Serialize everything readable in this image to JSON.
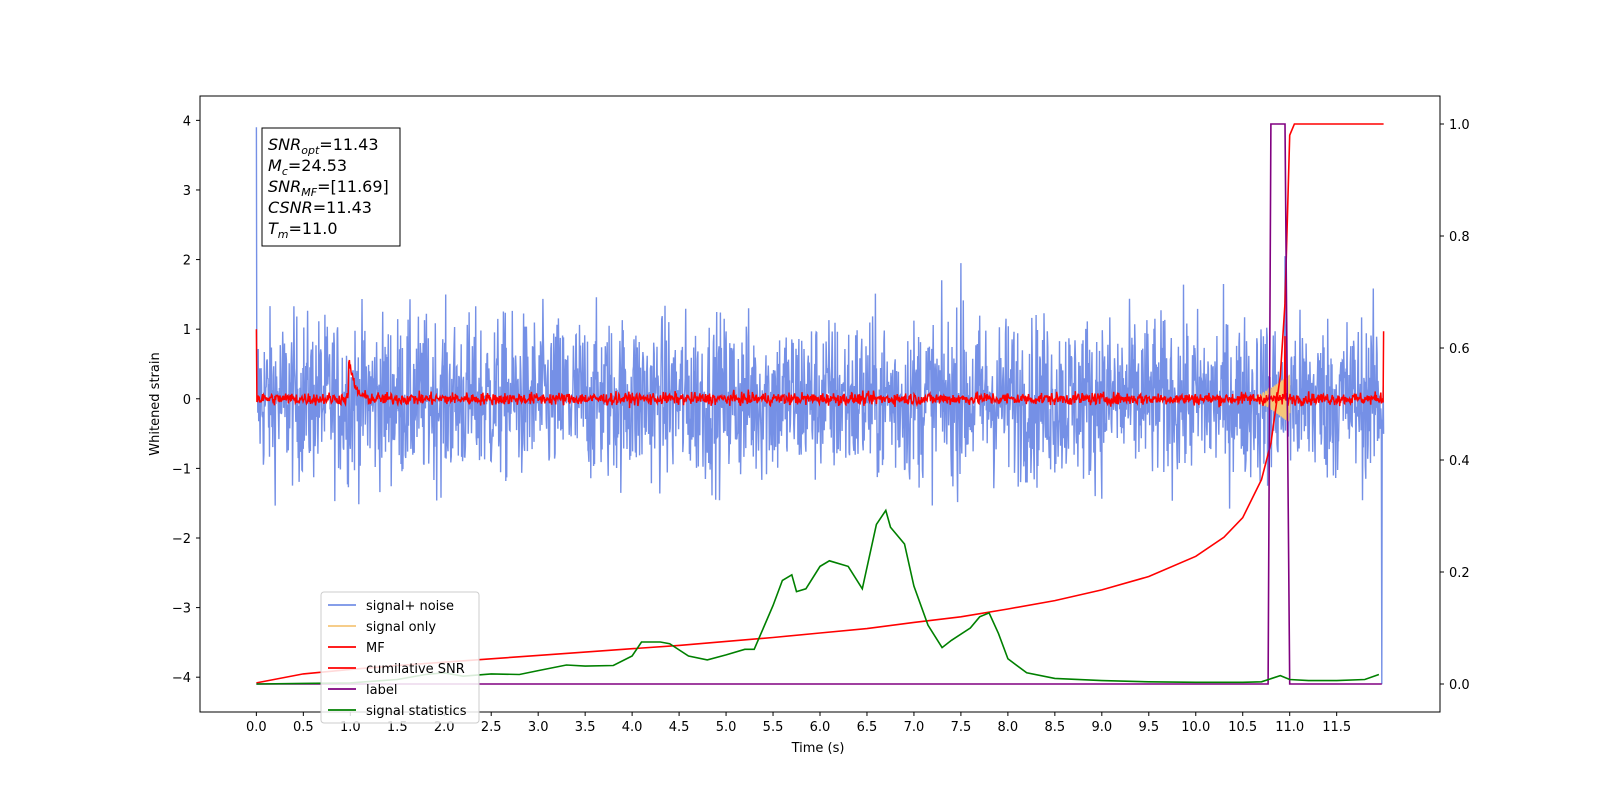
{
  "chart_data": {
    "type": "line",
    "xlabel": "Time (s)",
    "ylabel": "Whitened strain",
    "xlim": [
      -0.6,
      12.6
    ],
    "ylim": [
      -4.5,
      4.35
    ],
    "y2lim": [
      -0.05,
      1.05
    ],
    "xticks": [
      0.0,
      0.5,
      1.0,
      1.5,
      2.0,
      2.5,
      3.0,
      3.5,
      4.0,
      4.5,
      5.0,
      5.5,
      6.0,
      6.5,
      7.0,
      7.5,
      8.0,
      8.5,
      9.0,
      9.5,
      10.0,
      10.5,
      11.0,
      11.5
    ],
    "xtick_labels": [
      "0.0",
      "0.5",
      "1.0",
      "1.5",
      "2.0",
      "2.5",
      "3.0",
      "3.5",
      "4.0",
      "4.5",
      "5.0",
      "5.5",
      "6.0",
      "6.5",
      "7.0",
      "7.5",
      "8.0",
      "8.5",
      "9.0",
      "9.5",
      "10.0",
      "10.5",
      "11.0",
      "11.5"
    ],
    "yticks": [
      -4,
      -3,
      -2,
      -1,
      0,
      1,
      2,
      3,
      4
    ],
    "ytick_labels": [
      "−4",
      "−3",
      "−2",
      "−1",
      "0",
      "1",
      "2",
      "3",
      "4"
    ],
    "y2ticks": [
      0.0,
      0.2,
      0.4,
      0.6,
      0.8,
      1.0
    ],
    "y2tick_labels": [
      "0.0",
      "0.2",
      "0.4",
      "0.6",
      "0.8",
      "1.0"
    ],
    "legend_position": "lower-left",
    "grid": false,
    "annotation_lines": [
      {
        "pre": "SNR",
        "sub": "opt",
        "post": "=11.43"
      },
      {
        "pre": "M",
        "sub": "c",
        "post": "=24.53"
      },
      {
        "pre": "SNR",
        "sub": "MF",
        "post": "=[11.69]"
      },
      {
        "pre": "CSNR",
        "sub": "",
        "post": "=11.43"
      },
      {
        "pre": "T",
        "sub": "m",
        "post": "=11.0"
      }
    ],
    "series": [
      {
        "name": "signal+ noise",
        "axis": "left",
        "color": "#7590e6",
        "style": "noise",
        "x_range": [
          0.0,
          12.0
        ],
        "approx_envelope": [
          -1.3,
          1.3
        ],
        "peaks": [
          [
            0.0,
            3.9
          ],
          [
            7.5,
            1.95
          ],
          [
            10.95,
            2.05
          ],
          [
            11.98,
            -4.1
          ]
        ]
      },
      {
        "name": "signal only",
        "axis": "left",
        "color": "#f5c67a",
        "style": "chirp",
        "x_range": [
          10.6,
          11.0
        ],
        "peak_amplitude": 0.35
      },
      {
        "name": "MF",
        "axis": "left",
        "color": "#ff0000",
        "style": "noise",
        "x_range": [
          0.0,
          12.0
        ],
        "approx_envelope": [
          -0.12,
          0.12
        ],
        "peaks": [
          [
            0.0,
            1.0
          ],
          [
            1.0,
            0.47
          ],
          [
            10.95,
            0.9
          ],
          [
            12.0,
            0.97
          ]
        ]
      },
      {
        "name": "cumilative SNR",
        "axis": "right",
        "color": "#ff0000",
        "x": [
          0.0,
          0.5,
          1.0,
          1.5,
          2.0,
          2.5,
          3.0,
          3.5,
          4.0,
          4.5,
          5.0,
          5.5,
          6.0,
          6.5,
          7.0,
          7.5,
          8.0,
          8.5,
          9.0,
          9.5,
          10.0,
          10.3,
          10.5,
          10.7,
          10.8,
          10.9,
          10.95,
          11.0,
          11.05,
          11.5,
          12.0
        ],
        "y": [
          0.002,
          0.018,
          0.026,
          0.033,
          0.039,
          0.045,
          0.051,
          0.057,
          0.063,
          0.069,
          0.076,
          0.083,
          0.091,
          0.099,
          0.11,
          0.12,
          0.134,
          0.149,
          0.168,
          0.192,
          0.228,
          0.262,
          0.297,
          0.365,
          0.43,
          0.55,
          0.68,
          0.98,
          1.0,
          1.0,
          1.0
        ]
      },
      {
        "name": "label",
        "axis": "right",
        "color": "#800080",
        "x": [
          0.0,
          10.77,
          10.8,
          10.9,
          10.93,
          10.95,
          11.0,
          11.98
        ],
        "y": [
          0.0,
          0.0,
          1.0,
          1.0,
          1.0,
          1.0,
          0.0,
          0.0
        ]
      },
      {
        "name": "signal statistics",
        "axis": "right",
        "color": "#008000",
        "x": [
          0.0,
          0.5,
          1.0,
          1.5,
          1.8,
          2.0,
          2.2,
          2.5,
          2.8,
          3.0,
          3.3,
          3.5,
          3.8,
          4.0,
          4.1,
          4.3,
          4.4,
          4.6,
          4.8,
          5.0,
          5.2,
          5.3,
          5.5,
          5.6,
          5.7,
          5.75,
          5.85,
          6.0,
          6.1,
          6.3,
          6.45,
          6.6,
          6.7,
          6.75,
          6.9,
          7.0,
          7.15,
          7.3,
          7.4,
          7.6,
          7.7,
          7.8,
          7.9,
          8.0,
          8.2,
          8.5,
          9.0,
          9.5,
          10.0,
          10.5,
          10.7,
          10.9,
          11.0,
          11.2,
          11.5,
          11.8,
          11.95
        ],
        "y": [
          0.0,
          0.001,
          0.002,
          0.008,
          0.017,
          0.02,
          0.014,
          0.018,
          0.017,
          0.024,
          0.034,
          0.032,
          0.033,
          0.05,
          0.075,
          0.075,
          0.072,
          0.05,
          0.043,
          0.052,
          0.062,
          0.062,
          0.14,
          0.185,
          0.195,
          0.165,
          0.17,
          0.21,
          0.22,
          0.21,
          0.17,
          0.285,
          0.31,
          0.28,
          0.25,
          0.175,
          0.105,
          0.065,
          0.078,
          0.1,
          0.12,
          0.127,
          0.09,
          0.045,
          0.02,
          0.01,
          0.006,
          0.004,
          0.003,
          0.003,
          0.004,
          0.015,
          0.008,
          0.006,
          0.006,
          0.008,
          0.017
        ]
      }
    ]
  },
  "colors": {
    "signal_plus_noise": "#7590e6",
    "signal_only": "#f5c67a",
    "mf": "#ff0000",
    "cumulative_snr": "#ff0000",
    "label": "#800080",
    "signal_statistics": "#008000"
  }
}
